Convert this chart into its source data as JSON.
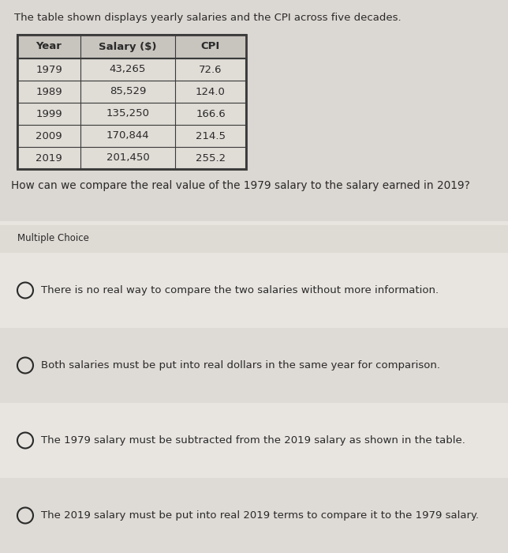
{
  "title_text": "The table shown displays yearly salaries and the CPI across five decades.",
  "table_headers": [
    "Year",
    "Salary ($)",
    "CPI"
  ],
  "table_rows": [
    [
      "1979",
      "43,265",
      "72.6"
    ],
    [
      "1989",
      "85,529",
      "124.0"
    ],
    [
      "1999",
      "135,250",
      "166.6"
    ],
    [
      "2009",
      "170,844",
      "214.5"
    ],
    [
      "2019",
      "201,450",
      "255.2"
    ]
  ],
  "question": "How can we compare the real value of the 1979 salary to the salary earned in 2019?",
  "mc_label": "Multiple Choice",
  "choices": [
    "There is no real way to compare the two salaries without more information.",
    "Both salaries must be put into real dollars in the same year for comparison.",
    "The 1979 salary must be subtracted from the 2019 salary as shown in the table.",
    "The 2019 salary must be put into real 2019 terms to compare it to the 1979 salary."
  ],
  "bg_color_top": "#dbd7d2",
  "bg_color_main": "#e8e5e0",
  "table_bg": "#e0dcd6",
  "header_bg": "#c8c4be",
  "mc_box_bg": "#dedad4",
  "choice_bg_light": "#e8e5e1",
  "choice_bg_dark": "#dedad5",
  "text_color": "#2a2a2a",
  "border_color": "#3a3a3a",
  "title_fontsize": 9.5,
  "table_fontsize": 9.5,
  "question_fontsize": 9.8,
  "mc_fontsize": 8.5,
  "choice_fontsize": 9.5
}
